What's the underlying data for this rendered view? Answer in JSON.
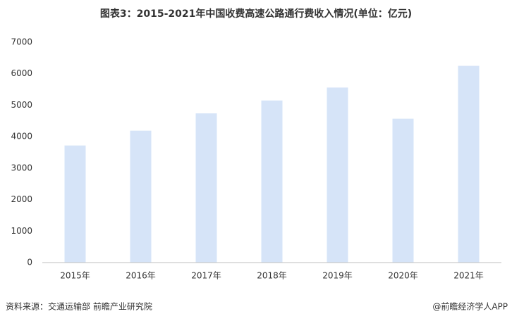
{
  "chart_data": {
    "type": "bar",
    "title": "图表3：2015-2021年中国收费高速公路通行费收入情况(单位：亿元)",
    "categories": [
      "2015年",
      "2016年",
      "2017年",
      "2018年",
      "2019年",
      "2020年",
      "2021年"
    ],
    "values": [
      3720,
      4190,
      4740,
      5150,
      5560,
      4570,
      6250
    ],
    "color": "#d6e4f8",
    "ylim": [
      0,
      7000
    ],
    "yticks": [
      0,
      1000,
      2000,
      3000,
      4000,
      5000,
      6000,
      7000
    ],
    "grid": false,
    "source": "资料来源：交通运输部 前瞻产业研究院",
    "credit": "@前瞻经济学人APP"
  }
}
